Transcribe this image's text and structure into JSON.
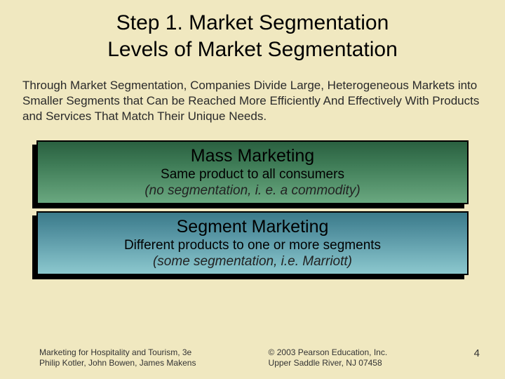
{
  "title_line1": "Step 1. Market Segmentation",
  "title_line2": "Levels of Market Segmentation",
  "body": "Through Market Segmentation, Companies Divide Large, Heterogeneous Markets into Smaller Segments that Can be Reached More Efficiently And Effectively With Products and Services That Match Their Unique Needs.",
  "boxes": [
    {
      "title": "Mass Marketing",
      "desc": "Same product to all consumers",
      "note": "(no segmentation, i. e. a commodity)",
      "bg_type": "green",
      "bg_gradient_from": "#2a6040",
      "bg_gradient_to": "#6aa880"
    },
    {
      "title": "Segment Marketing",
      "desc": "Different products to one or more segments",
      "note": "(some segmentation, i.e. Marriott)",
      "bg_type": "teal",
      "bg_gradient_from": "#3a7a8a",
      "bg_gradient_to": "#8cc8ce"
    }
  ],
  "footer": {
    "left_line1": "Marketing for Hospitality and Tourism, 3e",
    "left_line2": "Philip Kotler, John Bowen, James Makens",
    "right_line1": "© 2003 Pearson Education, Inc.",
    "right_line2": "Upper Saddle River, NJ 07458",
    "page_number": "4"
  },
  "styling": {
    "slide_bg": "#f0e8c0",
    "title_fontsize": 30,
    "body_fontsize": 17,
    "box_title_fontsize": 25,
    "box_desc_fontsize": 19,
    "box_note_fontsize": 19,
    "footer_fontsize": 12,
    "box_border_color": "#000000",
    "box_shadow_color": "#000000"
  }
}
